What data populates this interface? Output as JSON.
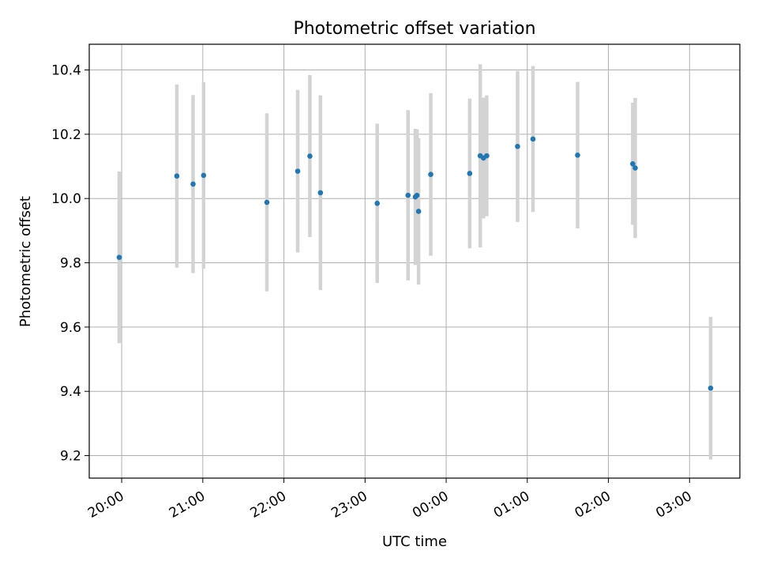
{
  "chart_data": {
    "type": "scatter",
    "title": "Photometric offset variation",
    "xlabel": "UTC time",
    "ylabel": "Photometric offset",
    "x_axis_unit": "hours relative to 00:00 UTC",
    "xlim": [
      -4.4,
      3.62
    ],
    "ylim": [
      9.13,
      10.48
    ],
    "x_ticks": [
      {
        "value": -4,
        "label": "20:00"
      },
      {
        "value": -3,
        "label": "21:00"
      },
      {
        "value": -2,
        "label": "22:00"
      },
      {
        "value": -1,
        "label": "23:00"
      },
      {
        "value": 0,
        "label": "00:00"
      },
      {
        "value": 1,
        "label": "01:00"
      },
      {
        "value": 2,
        "label": "02:00"
      },
      {
        "value": 3,
        "label": "03:00"
      }
    ],
    "y_ticks": [
      {
        "value": 9.2,
        "label": "9.2"
      },
      {
        "value": 9.4,
        "label": "9.4"
      },
      {
        "value": 9.6,
        "label": "9.6"
      },
      {
        "value": 9.8,
        "label": "9.8"
      },
      {
        "value": 10.0,
        "label": "10.0"
      },
      {
        "value": 10.2,
        "label": "10.2"
      },
      {
        "value": 10.4,
        "label": "10.4"
      }
    ],
    "grid": true,
    "point_color": "#1f77b4",
    "errorbar_color": "#d3d3d3",
    "points": [
      {
        "x": -4.03,
        "y": 9.817,
        "err": 0.267
      },
      {
        "x": -3.32,
        "y": 10.07,
        "err": 0.285
      },
      {
        "x": -3.12,
        "y": 10.045,
        "err": 0.277
      },
      {
        "x": -2.99,
        "y": 10.072,
        "err": 0.29
      },
      {
        "x": -2.21,
        "y": 9.988,
        "err": 0.277
      },
      {
        "x": -1.83,
        "y": 10.085,
        "err": 0.253
      },
      {
        "x": -1.68,
        "y": 10.132,
        "err": 0.252
      },
      {
        "x": -1.55,
        "y": 10.018,
        "err": 0.303
      },
      {
        "x": -0.85,
        "y": 9.985,
        "err": 0.248
      },
      {
        "x": -0.47,
        "y": 10.01,
        "err": 0.265
      },
      {
        "x": -0.38,
        "y": 10.005,
        "err": 0.212
      },
      {
        "x": -0.36,
        "y": 10.01,
        "err": 0.205
      },
      {
        "x": -0.34,
        "y": 9.96,
        "err": 0.228
      },
      {
        "x": -0.19,
        "y": 10.075,
        "err": 0.253
      },
      {
        "x": 0.29,
        "y": 10.078,
        "err": 0.233
      },
      {
        "x": 0.42,
        "y": 10.133,
        "err": 0.285
      },
      {
        "x": 0.46,
        "y": 10.126,
        "err": 0.188
      },
      {
        "x": 0.5,
        "y": 10.133,
        "err": 0.188
      },
      {
        "x": 0.88,
        "y": 10.162,
        "err": 0.235
      },
      {
        "x": 1.07,
        "y": 10.185,
        "err": 0.227
      },
      {
        "x": 1.62,
        "y": 10.135,
        "err": 0.228
      },
      {
        "x": 2.3,
        "y": 10.108,
        "err": 0.19
      },
      {
        "x": 2.33,
        "y": 10.095,
        "err": 0.218
      },
      {
        "x": 3.26,
        "y": 9.41,
        "err": 0.222
      }
    ]
  }
}
